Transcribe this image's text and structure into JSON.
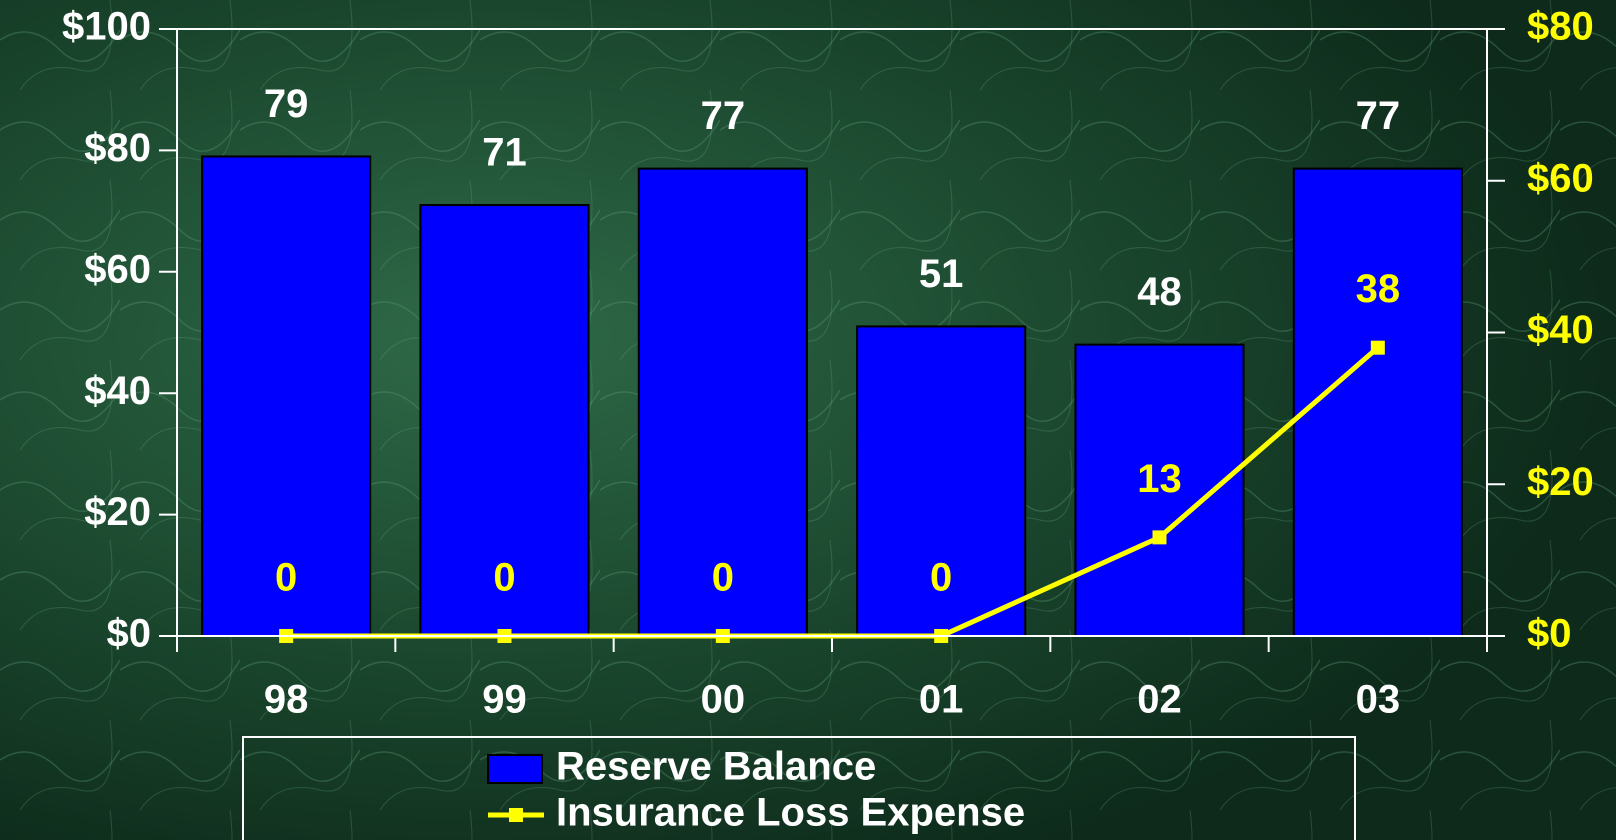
{
  "chart_data": {
    "type": "bar",
    "categories": [
      "98",
      "99",
      "00",
      "01",
      "02",
      "03"
    ],
    "series": [
      {
        "name": "Reserve Balance",
        "type": "bar",
        "color": "#0000ff",
        "values": [
          79,
          71,
          77,
          51,
          48,
          77
        ]
      },
      {
        "name": "Insurance Loss Expense",
        "type": "line",
        "axis": "y2",
        "color": "#ffff00",
        "values": [
          0,
          0,
          0,
          0,
          13,
          38
        ]
      }
    ],
    "ylim": [
      0,
      100
    ],
    "yticks": [
      {
        "value": 0,
        "label": "$0"
      },
      {
        "value": 20,
        "label": "$20"
      },
      {
        "value": 40,
        "label": "$40"
      },
      {
        "value": 60,
        "label": "$60"
      },
      {
        "value": 80,
        "label": "$80"
      },
      {
        "value": 100,
        "label": "$100"
      }
    ],
    "y2lim": [
      0,
      80
    ],
    "y2ticks": [
      {
        "value": 0,
        "label": "$0"
      },
      {
        "value": 20,
        "label": "$20"
      },
      {
        "value": 40,
        "label": "$40"
      },
      {
        "value": 60,
        "label": "$60"
      },
      {
        "value": 80,
        "label": "$80"
      }
    ],
    "grid": false,
    "legend": "bottom"
  }
}
